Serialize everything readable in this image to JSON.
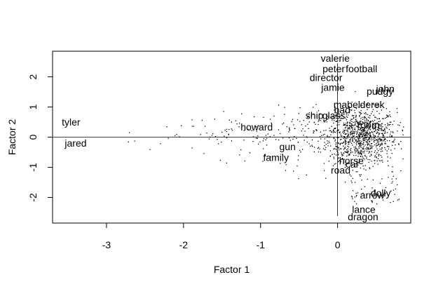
{
  "chart_data": {
    "type": "scatter",
    "title": "",
    "xlabel": "Factor 1",
    "ylabel": "Factor 2",
    "xlim": [
      -3.7,
      0.95
    ],
    "ylim": [
      -2.85,
      2.85
    ],
    "x_ticks": [
      -3,
      -2,
      -1,
      0
    ],
    "y_ticks": [
      -2,
      -1,
      0,
      1,
      2
    ],
    "reference_lines": {
      "x": 0,
      "y": 0
    },
    "grid": false,
    "legend": "none",
    "point_color": "#000000",
    "labeled_points": [
      {
        "label": "valerie",
        "x": -0.03,
        "y": 2.62
      },
      {
        "label": "peter",
        "x": -0.05,
        "y": 2.27
      },
      {
        "label": "football",
        "x": 0.31,
        "y": 2.27
      },
      {
        "label": "director",
        "x": -0.15,
        "y": 1.97
      },
      {
        "label": "jamie",
        "x": -0.06,
        "y": 1.65
      },
      {
        "label": "john",
        "x": 0.62,
        "y": 1.6
      },
      {
        "label": "pudgy",
        "x": 0.55,
        "y": 1.52
      },
      {
        "label": "mabel",
        "x": 0.12,
        "y": 1.08
      },
      {
        "label": "derek",
        "x": 0.45,
        "y": 1.08
      },
      {
        "label": "bad",
        "x": 0.06,
        "y": 0.9
      },
      {
        "label": "ship",
        "x": -0.3,
        "y": 0.72
      },
      {
        "label": "glass",
        "x": -0.05,
        "y": 0.72
      },
      {
        "label": "tyler",
        "x": -3.46,
        "y": 0.5
      },
      {
        "label": "howard",
        "x": -1.05,
        "y": 0.33
      },
      {
        "label": "room",
        "x": 0.4,
        "y": 0.4
      },
      {
        "label": "jared",
        "x": -3.4,
        "y": -0.2
      },
      {
        "label": "gun",
        "x": -0.65,
        "y": -0.32
      },
      {
        "label": "family",
        "x": -0.8,
        "y": -0.68
      },
      {
        "label": "horse",
        "x": 0.18,
        "y": -0.78
      },
      {
        "label": "car",
        "x": 0.19,
        "y": -0.9
      },
      {
        "label": "road",
        "x": 0.04,
        "y": -1.1
      },
      {
        "label": "dolly",
        "x": 0.56,
        "y": -1.85
      },
      {
        "label": "arrow",
        "x": 0.45,
        "y": -1.92
      },
      {
        "label": "lance",
        "x": 0.34,
        "y": -2.4
      },
      {
        "label": "dragon",
        "x": 0.33,
        "y": -2.64
      }
    ]
  }
}
